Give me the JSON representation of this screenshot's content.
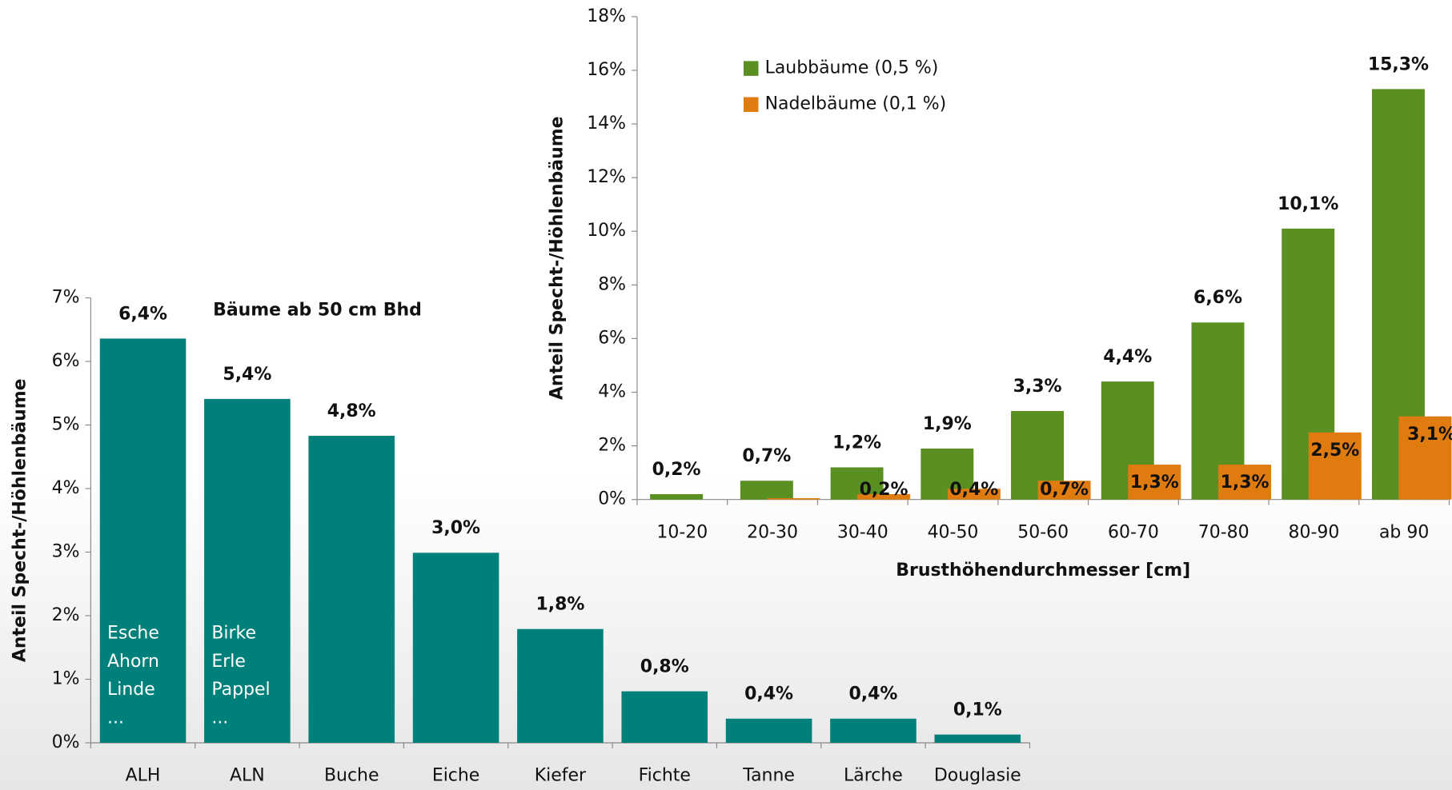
{
  "chart_data": [
    {
      "type": "bar",
      "subtitle": "Bäume ab 50 cm Bhd",
      "ylabel": "Anteil Specht-/Höhlenbäume",
      "categories": [
        "ALH",
        "ALN",
        "Buche",
        "Eiche",
        "Kiefer",
        "Fichte",
        "Tanne",
        "Lärche",
        "Douglasie"
      ],
      "values": [
        6.36,
        5.41,
        4.83,
        2.99,
        1.79,
        0.81,
        0.38,
        0.38,
        0.13
      ],
      "value_labels": [
        "6,4%",
        "5,4%",
        "4,8%",
        "3,0%",
        "1,8%",
        "0,8%",
        "0,4%",
        "0,4%",
        "0,1%"
      ],
      "color": "#00807a",
      "bar_notes": [
        [
          "Esche",
          "Ahorn",
          "Linde",
          "..."
        ],
        [
          "Birke",
          "Erle",
          "Pappel",
          "..."
        ]
      ],
      "ylim": [
        0,
        7
      ],
      "yticks": [
        {
          "value": 0,
          "label": "0%"
        },
        {
          "value": 1,
          "label": "1%"
        },
        {
          "value": 2,
          "label": "2%"
        },
        {
          "value": 3,
          "label": "3%"
        },
        {
          "value": 4,
          "label": "4%"
        },
        {
          "value": 5,
          "label": "5%"
        },
        {
          "value": 6,
          "label": "6%"
        },
        {
          "value": 7,
          "label": "7%"
        }
      ]
    },
    {
      "type": "grouped_bar",
      "xlabel": "Brusthöhendurchmesser [cm]",
      "ylabel": "Anteil Specht-/Höhlenbäume",
      "categories": [
        "10-20",
        "20-30",
        "30-40",
        "40-50",
        "50-60",
        "60-70",
        "70-80",
        "80-90",
        "ab 90"
      ],
      "series": [
        {
          "name": "Laubbäume (0,5 %)",
          "color": "#5a8f22",
          "values": [
            0.2,
            0.7,
            1.2,
            1.9,
            3.3,
            4.4,
            6.6,
            10.1,
            15.3
          ],
          "value_labels": [
            "0,2%",
            "0,7%",
            "1,2%",
            "1,9%",
            "3,3%",
            "4,4%",
            "6,6%",
            "10,1%",
            "15,3%"
          ]
        },
        {
          "name": "Nadelbäume (0,1 %)",
          "color": "#e07b10",
          "values": [
            null,
            0.05,
            0.2,
            0.4,
            0.7,
            1.3,
            1.3,
            2.5,
            3.1
          ],
          "value_labels": [
            null,
            null,
            "0,2%",
            "0,4%",
            "0,7%",
            "1,3%",
            "1,3%",
            "2,5%",
            "3,1%"
          ]
        }
      ],
      "legend": "upper left",
      "ylim": [
        0,
        18
      ],
      "yticks": [
        {
          "value": 0,
          "label": "0%"
        },
        {
          "value": 2,
          "label": "2%"
        },
        {
          "value": 4,
          "label": "4%"
        },
        {
          "value": 6,
          "label": "6%"
        },
        {
          "value": 8,
          "label": "8%"
        },
        {
          "value": 10,
          "label": "10%"
        },
        {
          "value": 12,
          "label": "12%"
        },
        {
          "value": 14,
          "label": "14%"
        },
        {
          "value": 16,
          "label": "16%"
        },
        {
          "value": 18,
          "label": "18%"
        }
      ]
    }
  ]
}
